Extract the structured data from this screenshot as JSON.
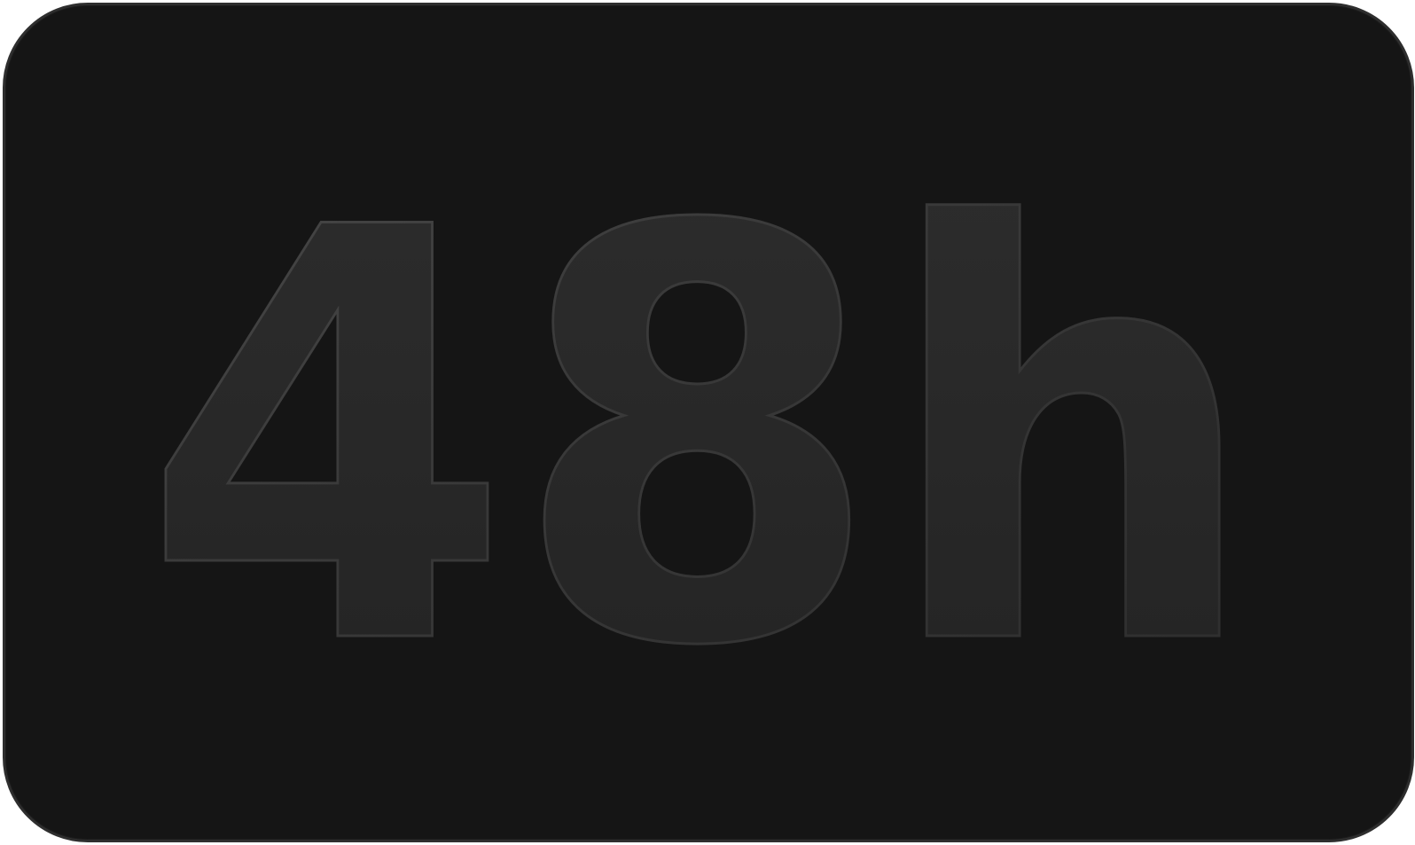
{
  "badge": {
    "value": "48h"
  },
  "colors": {
    "background": "#151515",
    "border": "#2e2e2e",
    "glyph_fill_top": "#2c2c2c",
    "glyph_fill_bottom": "#202020",
    "glyph_stroke": "#3a3a3a",
    "glyph_highlight": "#bdbdbd"
  }
}
